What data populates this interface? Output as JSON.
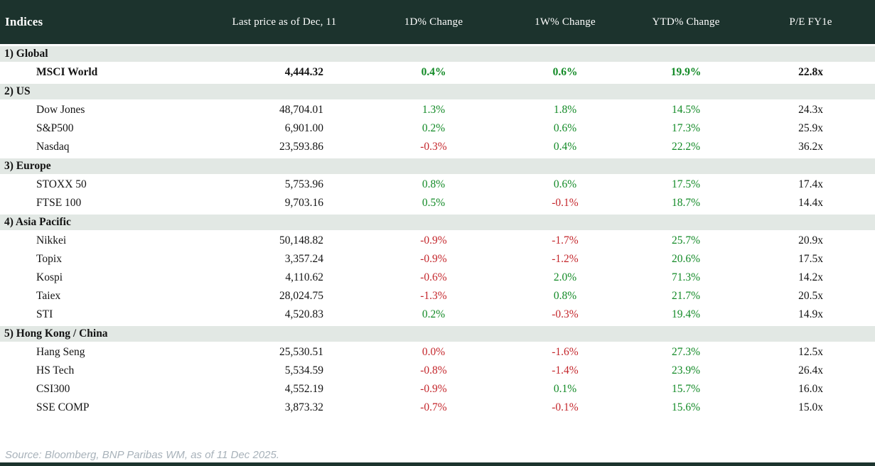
{
  "colors": {
    "header_bg": "#1c332d",
    "header_text": "#ffffff",
    "section_bg": "#e2e8e4",
    "positive": "#128a26",
    "negative": "#c4262b",
    "source_text": "#a8b2ba"
  },
  "table": {
    "title": "Indices",
    "columns": [
      "Last price as of Dec, 11",
      "1D% Change",
      "1W% Change",
      "YTD% Change",
      "P/E FY1e"
    ],
    "sections": [
      {
        "label": "1) Global",
        "rows": [
          {
            "name": "MSCI World",
            "price": "4,444.32",
            "d1": "0.4%",
            "d1_sign": "pos",
            "w1": "0.6%",
            "w1_sign": "pos",
            "ytd": "19.9%",
            "ytd_sign": "pos",
            "pe": "22.8x",
            "bold": true
          }
        ]
      },
      {
        "label": "2) US",
        "rows": [
          {
            "name": "Dow Jones",
            "price": "48,704.01",
            "d1": "1.3%",
            "d1_sign": "pos",
            "w1": "1.8%",
            "w1_sign": "pos",
            "ytd": "14.5%",
            "ytd_sign": "pos",
            "pe": "24.3x"
          },
          {
            "name": "S&P500",
            "price": "6,901.00",
            "d1": "0.2%",
            "d1_sign": "pos",
            "w1": "0.6%",
            "w1_sign": "pos",
            "ytd": "17.3%",
            "ytd_sign": "pos",
            "pe": "25.9x"
          },
          {
            "name": "Nasdaq",
            "price": "23,593.86",
            "d1": "-0.3%",
            "d1_sign": "neg",
            "w1": "0.4%",
            "w1_sign": "pos",
            "ytd": "22.2%",
            "ytd_sign": "pos",
            "pe": "36.2x"
          }
        ]
      },
      {
        "label": "3) Europe",
        "rows": [
          {
            "name": "STOXX 50",
            "price": "5,753.96",
            "d1": "0.8%",
            "d1_sign": "pos",
            "w1": "0.6%",
            "w1_sign": "pos",
            "ytd": "17.5%",
            "ytd_sign": "pos",
            "pe": "17.4x"
          },
          {
            "name": "FTSE 100",
            "price": "9,703.16",
            "d1": "0.5%",
            "d1_sign": "pos",
            "w1": "-0.1%",
            "w1_sign": "neg",
            "ytd": "18.7%",
            "ytd_sign": "pos",
            "pe": "14.4x"
          }
        ]
      },
      {
        "label": "4) Asia Pacific",
        "rows": [
          {
            "name": "Nikkei",
            "price": "50,148.82",
            "d1": "-0.9%",
            "d1_sign": "neg",
            "w1": "-1.7%",
            "w1_sign": "neg",
            "ytd": "25.7%",
            "ytd_sign": "pos",
            "pe": "20.9x"
          },
          {
            "name": "Topix",
            "price": "3,357.24",
            "d1": "-0.9%",
            "d1_sign": "neg",
            "w1": "-1.2%",
            "w1_sign": "neg",
            "ytd": "20.6%",
            "ytd_sign": "pos",
            "pe": "17.5x"
          },
          {
            "name": "Kospi",
            "price": "4,110.62",
            "d1": "-0.6%",
            "d1_sign": "neg",
            "w1": "2.0%",
            "w1_sign": "pos",
            "ytd": "71.3%",
            "ytd_sign": "pos",
            "pe": "14.2x"
          },
          {
            "name": "Taiex",
            "price": "28,024.75",
            "d1": "-1.3%",
            "d1_sign": "neg",
            "w1": "0.8%",
            "w1_sign": "pos",
            "ytd": "21.7%",
            "ytd_sign": "pos",
            "pe": "20.5x"
          },
          {
            "name": "STI",
            "price": "4,520.83",
            "d1": "0.2%",
            "d1_sign": "pos",
            "w1": "-0.3%",
            "w1_sign": "neg",
            "ytd": "19.4%",
            "ytd_sign": "pos",
            "pe": "14.9x"
          }
        ]
      },
      {
        "label": "5) Hong Kong / China",
        "rows": [
          {
            "name": "Hang Seng",
            "price": "25,530.51",
            "d1": "0.0%",
            "d1_sign": "neg",
            "w1": "-1.6%",
            "w1_sign": "neg",
            "ytd": "27.3%",
            "ytd_sign": "pos",
            "pe": "12.5x"
          },
          {
            "name": "HS Tech",
            "price": "5,534.59",
            "d1": "-0.8%",
            "d1_sign": "neg",
            "w1": "-1.4%",
            "w1_sign": "neg",
            "ytd": "23.9%",
            "ytd_sign": "pos",
            "pe": "26.4x"
          },
          {
            "name": "CSI300",
            "price": "4,552.19",
            "d1": "-0.9%",
            "d1_sign": "neg",
            "w1": "0.1%",
            "w1_sign": "pos",
            "ytd": "15.7%",
            "ytd_sign": "pos",
            "pe": "16.0x"
          },
          {
            "name": "SSE COMP",
            "price": "3,873.32",
            "d1": "-0.7%",
            "d1_sign": "neg",
            "w1": "-0.1%",
            "w1_sign": "neg",
            "ytd": "15.6%",
            "ytd_sign": "pos",
            "pe": "15.0x"
          }
        ]
      }
    ]
  },
  "footer": {
    "source": "Source: Bloomberg, BNP Paribas WM, as of 11 Dec 2025."
  }
}
